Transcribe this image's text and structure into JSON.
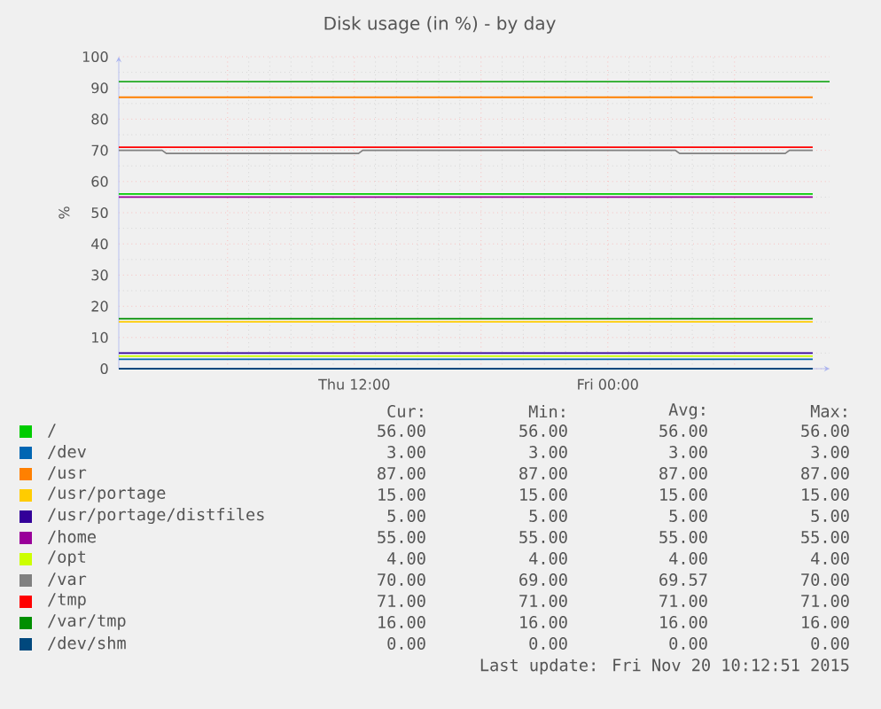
{
  "chart_data": {
    "type": "line",
    "title": "Disk usage (in %) - by day",
    "ylabel": "%",
    "xlim": [
      "2015-11-19T00:51",
      "2015-11-20T10:30"
    ],
    "ylim": [
      0,
      100
    ],
    "xticks": [
      {
        "value": "2015-11-19T06:00",
        "label": null
      },
      {
        "value": "2015-11-19T12:00",
        "label": "Thu 12:00"
      },
      {
        "value": "2015-11-19T18:00",
        "label": null
      },
      {
        "value": "2015-11-20T00:00",
        "label": "Fri 00:00"
      },
      {
        "value": "2015-11-20T06:00",
        "label": null
      }
    ],
    "yticks": [
      0,
      10,
      20,
      30,
      40,
      50,
      60,
      70,
      80,
      90,
      100
    ],
    "grid": true,
    "legend": "bottom",
    "marker": "none",
    "line_style": "solid",
    "series": [
      {
        "name": "/",
        "color": "#00cc00",
        "x": [
          "2015-11-19T00:51",
          "2015-11-20T09:42"
        ],
        "values": [
          56,
          56
        ]
      },
      {
        "name": "/dev",
        "color": "#0066b3",
        "x": [
          "2015-11-19T00:51",
          "2015-11-20T09:42"
        ],
        "values": [
          3,
          3
        ]
      },
      {
        "name": "/usr",
        "color": "#ff8000",
        "x": [
          "2015-11-19T00:51",
          "2015-11-20T09:42"
        ],
        "values": [
          87,
          87
        ]
      },
      {
        "name": "/usr/portage",
        "color": "#ffcc00",
        "x": [
          "2015-11-19T00:51",
          "2015-11-20T09:42"
        ],
        "values": [
          15,
          15
        ]
      },
      {
        "name": "/usr/portage/distfiles",
        "color": "#330099",
        "x": [
          "2015-11-19T00:51",
          "2015-11-20T09:42"
        ],
        "values": [
          5,
          5
        ]
      },
      {
        "name": "/home",
        "color": "#990099",
        "x": [
          "2015-11-19T00:51",
          "2015-11-20T09:42"
        ],
        "values": [
          55,
          55
        ]
      },
      {
        "name": "/opt",
        "color": "#ccff00",
        "x": [
          "2015-11-19T00:51",
          "2015-11-20T09:42"
        ],
        "values": [
          4,
          4
        ]
      },
      {
        "name": "/var",
        "color": "#808080",
        "x": [
          "2015-11-19T00:51",
          "2015-11-19T02:54",
          "2015-11-19T03:06",
          "2015-11-19T12:12",
          "2015-11-19T12:24",
          "2015-11-20T03:12",
          "2015-11-20T03:24",
          "2015-11-20T08:24",
          "2015-11-20T08:36",
          "2015-11-20T09:42"
        ],
        "values": [
          70,
          70,
          69,
          69,
          70,
          70,
          69,
          69,
          70,
          70
        ]
      },
      {
        "name": "/tmp",
        "color": "#ff0000",
        "x": [
          "2015-11-19T00:51",
          "2015-11-20T09:42"
        ],
        "values": [
          71,
          71
        ]
      },
      {
        "name": "/var/tmp",
        "color": "#008f00",
        "x": [
          "2015-11-19T00:51",
          "2015-11-20T09:42"
        ],
        "values": [
          16,
          16
        ]
      },
      {
        "name": "/dev/shm",
        "color": "#00487d",
        "x": [
          "2015-11-19T00:51",
          "2015-11-20T09:42"
        ],
        "values": [
          0,
          0
        ]
      }
    ],
    "ref_lines": [
      {
        "axis": "y",
        "value": 92,
        "color": "#22aa22"
      }
    ],
    "annotations": [
      "Cur:",
      "Min:",
      "Avg:",
      "Max:",
      "56.00",
      "56.00",
      "56.00",
      "56.00",
      "3.00",
      "3.00",
      "3.00",
      "3.00",
      "87.00",
      "87.00",
      "87.00",
      "87.00",
      "15.00",
      "15.00",
      "15.00",
      "15.00",
      "5.00",
      "5.00",
      "5.00",
      "5.00",
      "55.00",
      "55.00",
      "55.00",
      "55.00",
      "4.00",
      "4.00",
      "4.00",
      "4.00",
      "70.00",
      "69.00",
      "69.57",
      "70.00",
      "71.00",
      "71.00",
      "71.00",
      "71.00",
      "16.00",
      "16.00",
      "16.00",
      "16.00",
      "0.00",
      "0.00",
      "0.00",
      "0.00",
      "Last update: Fri Nov 20 10:12:51 2015"
    ]
  }
}
